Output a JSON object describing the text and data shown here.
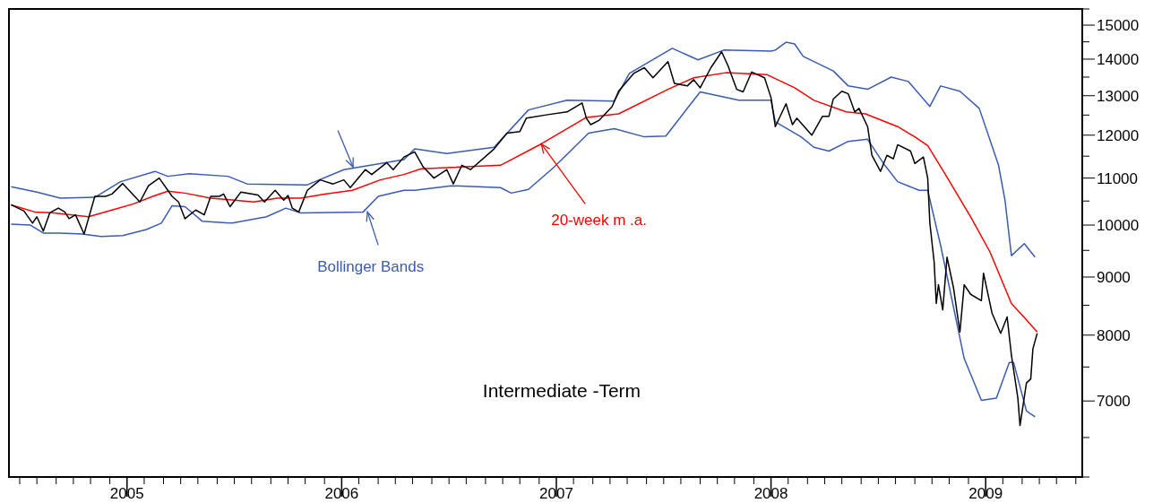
{
  "chart_data": {
    "type": "line",
    "title": "Intermediate -Term",
    "log": "y",
    "xlim": [
      2004.45,
      2009.45
    ],
    "ylim": [
      6000,
      15500
    ],
    "xticks": [
      {
        "value": 2004.5,
        "label": null
      },
      {
        "value": 2004.58,
        "label": null
      },
      {
        "value": 2004.67,
        "label": null
      },
      {
        "value": 2004.75,
        "label": null
      },
      {
        "value": 2004.83,
        "label": null
      },
      {
        "value": 2004.92,
        "label": null
      },
      2005,
      {
        "value": 2005.08,
        "label": null
      },
      {
        "value": 2005.17,
        "label": null
      },
      {
        "value": 2005.25,
        "label": null
      },
      {
        "value": 2005.33,
        "label": null
      },
      {
        "value": 2005.42,
        "label": null
      },
      {
        "value": 2005.5,
        "label": null
      },
      {
        "value": 2005.58,
        "label": null
      },
      {
        "value": 2005.67,
        "label": null
      },
      {
        "value": 2005.75,
        "label": null
      },
      {
        "value": 2005.83,
        "label": null
      },
      {
        "value": 2005.92,
        "label": null
      },
      2006,
      {
        "value": 2006.08,
        "label": null
      },
      {
        "value": 2006.17,
        "label": null
      },
      {
        "value": 2006.25,
        "label": null
      },
      {
        "value": 2006.33,
        "label": null
      },
      {
        "value": 2006.42,
        "label": null
      },
      {
        "value": 2006.5,
        "label": null
      },
      {
        "value": 2006.58,
        "label": null
      },
      {
        "value": 2006.67,
        "label": null
      },
      {
        "value": 2006.75,
        "label": null
      },
      {
        "value": 2006.83,
        "label": null
      },
      {
        "value": 2006.92,
        "label": null
      },
      2007,
      {
        "value": 2007.08,
        "label": null
      },
      {
        "value": 2007.17,
        "label": null
      },
      {
        "value": 2007.25,
        "label": null
      },
      {
        "value": 2007.33,
        "label": null
      },
      {
        "value": 2007.42,
        "label": null
      },
      {
        "value": 2007.5,
        "label": null
      },
      {
        "value": 2007.58,
        "label": null
      },
      {
        "value": 2007.67,
        "label": null
      },
      {
        "value": 2007.75,
        "label": null
      },
      {
        "value": 2007.83,
        "label": null
      },
      {
        "value": 2007.92,
        "label": null
      },
      2008,
      {
        "value": 2008.08,
        "label": null
      },
      {
        "value": 2008.17,
        "label": null
      },
      {
        "value": 2008.25,
        "label": null
      },
      {
        "value": 2008.33,
        "label": null
      },
      {
        "value": 2008.42,
        "label": null
      },
      {
        "value": 2008.5,
        "label": null
      },
      {
        "value": 2008.58,
        "label": null
      },
      {
        "value": 2008.67,
        "label": null
      },
      {
        "value": 2008.75,
        "label": null
      },
      {
        "value": 2008.83,
        "label": null
      },
      {
        "value": 2008.92,
        "label": null
      },
      2009,
      {
        "value": 2009.08,
        "label": null
      },
      {
        "value": 2009.17,
        "label": null
      },
      {
        "value": 2009.25,
        "label": null
      },
      {
        "value": 2009.33,
        "label": null
      },
      {
        "value": 2009.42,
        "label": null
      }
    ],
    "yticks": [
      {
        "value": 6000,
        "label": null
      },
      {
        "value": 6500,
        "label": null
      },
      7000,
      {
        "value": 7500,
        "label": null
      },
      8000,
      {
        "value": 8500,
        "label": null
      },
      9000,
      {
        "value": 9500,
        "label": null
      },
      10000,
      {
        "value": 10500,
        "label": null
      },
      11000,
      {
        "value": 11500,
        "label": null
      },
      12000,
      {
        "value": 12500,
        "label": null
      },
      13000,
      {
        "value": 13500,
        "label": null
      },
      14000,
      {
        "value": 14500,
        "label": null
      },
      15000,
      {
        "value": 15500,
        "label": null
      }
    ],
    "series": [
      {
        "color": "#3a5bb5",
        "x": [
          2004.46,
          2004.58,
          2004.69,
          2004.85,
          2004.97,
          2005.13,
          2005.19,
          2005.29,
          2005.47,
          2005.56,
          2005.84,
          2006.01,
          2006.29,
          2006.34,
          2006.49,
          2006.71,
          2006.87,
          2007.05,
          2007.27,
          2007.34,
          2007.54,
          2007.66,
          2007.78,
          2008.0,
          2008.02,
          2008.07,
          2008.11,
          2008.15,
          2008.29,
          2008.36,
          2008.45,
          2008.56,
          2008.64,
          2008.74,
          2008.79,
          2008.88,
          2008.97,
          2009.06,
          2009.09,
          2009.12,
          2009.18,
          2009.23
        ],
        "values": [
          10810,
          10690,
          10560,
          10580,
          10920,
          11150,
          11040,
          11100,
          11040,
          10870,
          10850,
          11190,
          11420,
          11670,
          11560,
          11710,
          12630,
          12880,
          12860,
          13600,
          14310,
          13980,
          14260,
          14230,
          14260,
          14490,
          14440,
          14080,
          13670,
          13260,
          13170,
          13500,
          13380,
          12720,
          13260,
          13120,
          12670,
          11290,
          10520,
          9400,
          9630,
          9370
        ]
      },
      {
        "color": "#3a5bb5",
        "x": [
          2004.46,
          2004.55,
          2004.61,
          2004.69,
          2004.79,
          2004.88,
          2004.98,
          2005.09,
          2005.16,
          2005.21,
          2005.27,
          2005.35,
          2005.49,
          2005.65,
          2005.74,
          2005.81,
          2006.1,
          2006.17,
          2006.29,
          2006.34,
          2006.51,
          2006.74,
          2006.79,
          2006.87,
          2006.99,
          2007.15,
          2007.27,
          2007.41,
          2007.51,
          2007.67,
          2007.85,
          2008.0,
          2008.02,
          2008.14,
          2008.2,
          2008.27,
          2008.36,
          2008.45,
          2008.53,
          2008.59,
          2008.69,
          2008.73,
          2008.79,
          2008.9,
          2008.98,
          2009.05,
          2009.11,
          2009.13,
          2009.19,
          2009.23
        ],
        "values": [
          10020,
          10000,
          9840,
          9840,
          9820,
          9770,
          9790,
          9910,
          10040,
          10400,
          10380,
          10080,
          10040,
          10170,
          10350,
          10250,
          10270,
          10600,
          10730,
          10730,
          10830,
          10790,
          10670,
          10750,
          11250,
          12050,
          12160,
          11960,
          11980,
          13100,
          12880,
          12880,
          12330,
          11960,
          11710,
          11620,
          11850,
          11900,
          11290,
          10920,
          10730,
          10730,
          9600,
          7630,
          7010,
          7040,
          7570,
          7570,
          6860,
          6780
        ]
      },
      {
        "color": "#ff0000",
        "x": [
          2004.46,
          2004.57,
          2004.66,
          2004.82,
          2004.93,
          2005.03,
          2005.12,
          2005.19,
          2005.27,
          2005.39,
          2005.5,
          2005.59,
          2005.7,
          2005.81,
          2005.92,
          2006.05,
          2006.18,
          2006.29,
          2006.37,
          2006.74,
          2006.93,
          2007.14,
          2007.29,
          2007.52,
          2007.64,
          2007.79,
          2007.98,
          2008.11,
          2008.2,
          2008.35,
          2008.44,
          2008.59,
          2008.67,
          2008.73,
          2008.81,
          2008.93,
          2009.02,
          2009.12,
          2009.19,
          2009.24
        ],
        "values": [
          10420,
          10270,
          10250,
          10170,
          10310,
          10440,
          10600,
          10710,
          10670,
          10560,
          10520,
          10480,
          10560,
          10560,
          10650,
          10730,
          10960,
          11080,
          11210,
          11290,
          11790,
          12440,
          12530,
          13170,
          13480,
          13620,
          13570,
          13210,
          12880,
          12580,
          12530,
          12210,
          11960,
          11750,
          11100,
          10170,
          9470,
          8530,
          8250,
          8050
        ]
      },
      {
        "color": "#000000",
        "x": [
          2004.46,
          2004.52,
          2004.56,
          2004.58,
          2004.61,
          2004.64,
          2004.68,
          2004.71,
          2004.73,
          2004.76,
          2004.8,
          2004.85,
          2004.9,
          2004.93,
          2004.98,
          2005.06,
          2005.1,
          2005.15,
          2005.21,
          2005.24,
          2005.27,
          2005.32,
          2005.36,
          2005.39,
          2005.43,
          2005.45,
          2005.48,
          2005.53,
          2005.61,
          2005.64,
          2005.69,
          2005.73,
          2005.75,
          2005.77,
          2005.8,
          2005.84,
          2005.9,
          2005.96,
          2006.01,
          2006.04,
          2006.11,
          2006.14,
          2006.21,
          2006.24,
          2006.29,
          2006.34,
          2006.38,
          2006.43,
          2006.49,
          2006.52,
          2006.56,
          2006.6,
          2006.71,
          2006.77,
          2006.83,
          2006.86,
          2006.96,
          2007.05,
          2007.12,
          2007.14,
          2007.16,
          2007.2,
          2007.26,
          2007.29,
          2007.36,
          2007.41,
          2007.45,
          2007.52,
          2007.55,
          2007.61,
          2007.64,
          2007.67,
          2007.72,
          2007.77,
          2007.8,
          2007.84,
          2007.87,
          2007.91,
          2007.97,
          2008.0,
          2008.02,
          2008.07,
          2008.1,
          2008.12,
          2008.19,
          2008.24,
          2008.27,
          2008.29,
          2008.33,
          2008.36,
          2008.39,
          2008.41,
          2008.45,
          2008.47,
          2008.51,
          2008.54,
          2008.57,
          2008.59,
          2008.65,
          2008.67,
          2008.71,
          2008.73,
          2008.74,
          2008.76,
          2008.77,
          2008.78,
          2008.8,
          2008.82,
          2008.85,
          2008.88,
          2008.9,
          2008.93,
          2008.98,
          2008.99,
          2009.03,
          2009.07,
          2009.1,
          2009.12,
          2009.15,
          2009.16,
          2009.19,
          2009.21,
          2009.22,
          2009.24
        ],
        "values": [
          10420,
          10290,
          10040,
          10170,
          9880,
          10250,
          10350,
          10270,
          10130,
          10210,
          9820,
          10600,
          10600,
          10650,
          10880,
          10480,
          10830,
          11000,
          10600,
          10480,
          10130,
          10310,
          10210,
          10600,
          10600,
          10650,
          10380,
          10690,
          10630,
          10480,
          10730,
          10520,
          10620,
          10350,
          10270,
          10730,
          10960,
          10870,
          10960,
          10790,
          11190,
          11080,
          11350,
          11190,
          11480,
          11600,
          11250,
          11000,
          11190,
          10870,
          11290,
          11190,
          11670,
          12050,
          12090,
          12420,
          12510,
          12580,
          12810,
          12420,
          12260,
          12370,
          12720,
          13120,
          13600,
          13760,
          13480,
          13930,
          13330,
          13260,
          13430,
          13210,
          13760,
          14210,
          13810,
          13170,
          13100,
          13640,
          13480,
          12950,
          12210,
          12790,
          12260,
          12420,
          12000,
          12470,
          12470,
          12910,
          13120,
          13050,
          12580,
          12670,
          12210,
          11520,
          11150,
          11520,
          11440,
          11770,
          11620,
          11330,
          11480,
          11000,
          10040,
          9280,
          8530,
          8860,
          8420,
          9370,
          8810,
          8050,
          8860,
          8690,
          8580,
          9070,
          8360,
          8030,
          8300,
          7680,
          7040,
          6660,
          7260,
          7320,
          7780,
          8030
        ]
      }
    ],
    "annotations": [
      {
        "text": "20-week m .a.",
        "x": 2006.93,
        "y": 11790
      },
      {
        "text": "Bollinger Bands",
        "x": 2006.12,
        "y": 10270
      }
    ]
  }
}
